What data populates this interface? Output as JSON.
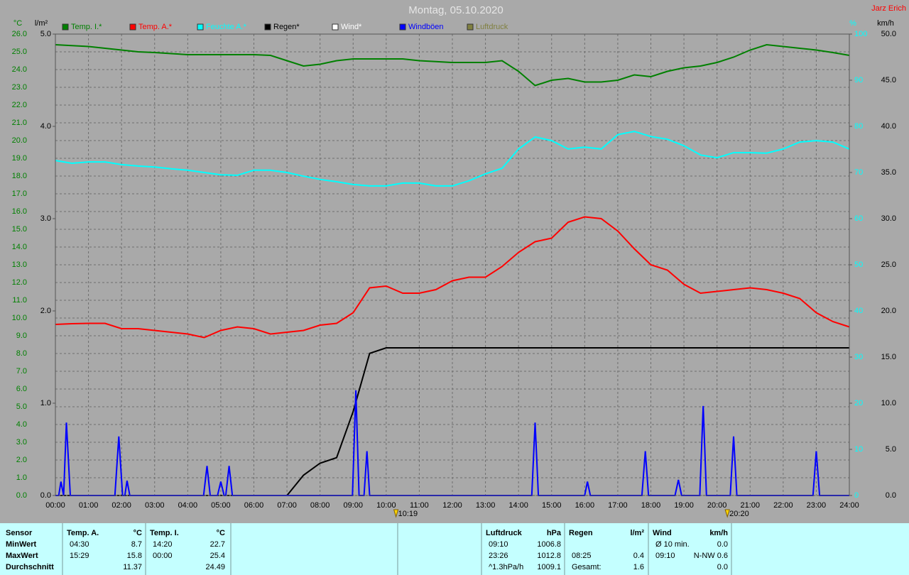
{
  "chart_data": {
    "type": "line",
    "title": "Montag, 05.10.2020",
    "author": "Jarz Erich",
    "ylabel": "°C",
    "y2label": "l/m²",
    "y3label": "%",
    "y4label": "km/h",
    "y_color": "#008000",
    "y2_color": "#000000",
    "y3_color": "#00ffff",
    "y4_color": "#000000",
    "grid": true,
    "x": [
      0,
      0.5,
      1,
      1.5,
      2,
      2.5,
      3,
      3.5,
      4,
      4.5,
      5,
      5.5,
      6,
      6.5,
      7,
      7.5,
      8,
      8.5,
      9,
      9.5,
      10,
      10.5,
      11,
      11.5,
      12,
      12.5,
      13,
      13.5,
      14,
      14.5,
      15,
      15.5,
      16,
      16.5,
      17,
      17.5,
      18,
      18.5,
      19,
      19.5,
      20,
      20.5,
      21,
      21.5,
      22,
      22.5,
      23,
      23.5,
      24
    ],
    "xlim": [
      0,
      24
    ],
    "xticks": [
      {
        "value": 0,
        "label": "00:00"
      },
      {
        "value": 1,
        "label": "01:00"
      },
      {
        "value": 2,
        "label": "02:00"
      },
      {
        "value": 3,
        "label": "03:00"
      },
      {
        "value": 4,
        "label": "04:00"
      },
      {
        "value": 5,
        "label": "05:00"
      },
      {
        "value": 6,
        "label": "06:00"
      },
      {
        "value": 7,
        "label": "07:00"
      },
      {
        "value": 8,
        "label": "08:00"
      },
      {
        "value": 9,
        "label": "09:00"
      },
      {
        "value": 10,
        "label": "10:00"
      },
      {
        "value": 11,
        "label": "11:00"
      },
      {
        "value": 12,
        "label": "12:00"
      },
      {
        "value": 13,
        "label": "13:00"
      },
      {
        "value": 14,
        "label": "14:00"
      },
      {
        "value": 15,
        "label": "15:00"
      },
      {
        "value": 16,
        "label": "16:00"
      },
      {
        "value": 17,
        "label": "17:00"
      },
      {
        "value": 18,
        "label": "18:00"
      },
      {
        "value": 19,
        "label": "19:00"
      },
      {
        "value": 20,
        "label": "20:00"
      },
      {
        "value": 21,
        "label": "21:00"
      },
      {
        "value": 22,
        "label": "22:00"
      },
      {
        "value": 23,
        "label": "23:00"
      },
      {
        "value": 24,
        "label": "24:00"
      }
    ],
    "ylim": [
      0,
      26
    ],
    "yticks": [
      {
        "value": 0,
        "label": "0.0"
      },
      {
        "value": 1,
        "label": "1.0"
      },
      {
        "value": 2,
        "label": "2.0"
      },
      {
        "value": 3,
        "label": "3.0"
      },
      {
        "value": 4,
        "label": "4.0"
      },
      {
        "value": 5,
        "label": "5.0"
      },
      {
        "value": 6,
        "label": "6.0"
      },
      {
        "value": 7,
        "label": "7.0"
      },
      {
        "value": 8,
        "label": "8.0"
      },
      {
        "value": 9,
        "label": "9.0"
      },
      {
        "value": 10,
        "label": "10.0"
      },
      {
        "value": 11,
        "label": "11.0"
      },
      {
        "value": 12,
        "label": "12.0"
      },
      {
        "value": 13,
        "label": "13.0"
      },
      {
        "value": 14,
        "label": "14.0"
      },
      {
        "value": 15,
        "label": "15.0"
      },
      {
        "value": 16,
        "label": "16.0"
      },
      {
        "value": 17,
        "label": "17.0"
      },
      {
        "value": 18,
        "label": "18.0"
      },
      {
        "value": 19,
        "label": "19.0"
      },
      {
        "value": 20,
        "label": "20.0"
      },
      {
        "value": 21,
        "label": "21.0"
      },
      {
        "value": 22,
        "label": "22.0"
      },
      {
        "value": 23,
        "label": "23.0"
      },
      {
        "value": 24,
        "label": "24.0"
      },
      {
        "value": 25,
        "label": "25.0"
      },
      {
        "value": 26,
        "label": "26.0"
      }
    ],
    "y2lim": [
      0,
      5
    ],
    "y2ticks": [
      {
        "value": 0,
        "label": "0.0"
      },
      {
        "value": 1,
        "label": "1.0"
      },
      {
        "value": 2,
        "label": "2.0"
      },
      {
        "value": 3,
        "label": "3.0"
      },
      {
        "value": 4,
        "label": "4.0"
      },
      {
        "value": 5,
        "label": "5.0"
      }
    ],
    "y3lim": [
      0,
      100
    ],
    "y3ticks": [
      0,
      10,
      20,
      30,
      40,
      50,
      60,
      70,
      80,
      90,
      100
    ],
    "y4lim": [
      0,
      50
    ],
    "y4ticks": [
      {
        "value": 0,
        "label": "0.0"
      },
      {
        "value": 5,
        "label": "5.0"
      },
      {
        "value": 10,
        "label": "10.0"
      },
      {
        "value": 15,
        "label": "15.0"
      },
      {
        "value": 20,
        "label": "20.0"
      },
      {
        "value": 25,
        "label": "25.0"
      },
      {
        "value": 30,
        "label": "30.0"
      },
      {
        "value": 35,
        "label": "35.0"
      },
      {
        "value": 40,
        "label": "40.0"
      },
      {
        "value": 45,
        "label": "45.0"
      },
      {
        "value": 50,
        "label": "50.0"
      }
    ],
    "series": [
      {
        "name": "Temp. I.*",
        "color": "#008000",
        "axis": "y",
        "values": [
          25.4,
          25.35,
          25.3,
          25.2,
          25.1,
          25.0,
          24.96,
          24.9,
          24.84,
          24.84,
          24.84,
          24.84,
          24.84,
          24.8,
          24.5,
          24.2,
          24.3,
          24.5,
          24.6,
          24.6,
          24.6,
          24.6,
          24.5,
          24.45,
          24.4,
          24.4,
          24.4,
          24.5,
          23.9,
          23.1,
          23.4,
          23.5,
          23.3,
          23.3,
          23.4,
          23.7,
          23.6,
          23.9,
          24.1,
          24.2,
          24.4,
          24.7,
          25.1,
          25.4,
          25.3,
          25.2,
          25.1,
          24.96,
          24.8
        ]
      },
      {
        "name": "Temp. A.*",
        "color": "#ff0000",
        "axis": "y",
        "values": [
          9.64,
          9.68,
          9.7,
          9.7,
          9.4,
          9.4,
          9.3,
          9.2,
          9.1,
          8.9,
          9.3,
          9.5,
          9.4,
          9.1,
          9.2,
          9.3,
          9.6,
          9.7,
          10.3,
          11.7,
          11.8,
          11.4,
          11.4,
          11.6,
          12.1,
          12.3,
          12.3,
          12.9,
          13.7,
          14.3,
          14.5,
          15.4,
          15.7,
          15.6,
          14.9,
          13.9,
          13.0,
          12.7,
          11.9,
          11.4,
          11.5,
          11.6,
          11.7,
          11.6,
          11.4,
          11.1,
          10.3,
          9.8,
          9.5
        ]
      },
      {
        "name": "Feuchte A.*",
        "color": "#00ffff",
        "axis": "y3",
        "values": [
          72.6,
          72,
          72.3,
          72.3,
          71.7,
          71.4,
          71.2,
          70.8,
          70.5,
          70,
          69.5,
          69.4,
          70.5,
          70.5,
          70,
          69.2,
          68.5,
          68,
          67.4,
          67.1,
          67.1,
          67.7,
          67.7,
          67.1,
          67.1,
          68.2,
          69.7,
          70.9,
          75.1,
          77.7,
          76.9,
          75.1,
          75.5,
          75.1,
          78.2,
          78.9,
          77.8,
          77.2,
          75.8,
          73.8,
          73.2,
          74.3,
          74.3,
          74.2,
          75.1,
          76.6,
          76.9,
          76.6,
          75.1
        ]
      },
      {
        "name": "Regen*",
        "color": "#000000",
        "axis": "y2",
        "values": [
          0,
          0,
          0,
          0,
          0,
          0,
          0,
          0,
          0,
          0,
          0,
          0,
          0,
          0,
          0,
          0.22,
          0.35,
          0.41,
          0.91,
          1.54,
          1.6,
          1.6,
          1.6,
          1.6,
          1.6,
          1.6,
          1.6,
          1.6,
          1.6,
          1.6,
          1.6,
          1.6,
          1.6,
          1.6,
          1.6,
          1.6,
          1.6,
          1.6,
          1.6,
          1.6,
          1.6,
          1.6,
          1.6,
          1.6,
          1.6,
          1.6,
          1.6,
          1.6,
          1.6
        ]
      },
      {
        "name": "Wind*",
        "color": "#ffffff",
        "axis": "y4",
        "values": [
          0,
          0,
          0,
          0,
          0,
          0,
          0,
          0,
          0,
          0,
          0,
          0,
          0,
          0,
          0,
          0,
          0,
          0,
          0,
          0,
          0,
          0,
          0,
          0,
          0,
          0,
          0,
          0,
          0,
          0,
          0,
          0,
          0,
          0,
          0,
          0,
          0,
          0,
          0,
          0,
          0,
          0,
          0,
          0,
          0,
          0,
          0,
          0,
          0
        ]
      },
      {
        "name": "Windböen",
        "color": "#0000ff",
        "axis": "y4",
        "x": [
          0,
          0.1,
          0.167,
          0.25,
          0.333,
          0.45,
          1.8,
          1.917,
          2.03,
          2.1,
          2.167,
          2.25,
          4.48,
          4.583,
          4.68,
          4.9,
          5.0,
          5.1,
          5.15,
          5.25,
          5.35,
          8.98,
          9.083,
          9.18,
          9.33,
          9.417,
          9.5,
          14.4,
          14.5,
          14.6,
          16.0,
          16.083,
          16.17,
          17.73,
          17.833,
          17.93,
          18.73,
          18.833,
          18.93,
          19.48,
          19.583,
          19.68,
          20.4,
          20.5,
          20.6,
          22.9,
          23.0,
          23.1,
          24
        ],
        "values": [
          0,
          0,
          1.5,
          0,
          7.9,
          0,
          0,
          6.4,
          0,
          0,
          1.6,
          0,
          0,
          3.2,
          0,
          0,
          1.5,
          0,
          0,
          3.2,
          0,
          0,
          11.4,
          0,
          0,
          4.8,
          0,
          0,
          7.9,
          0,
          0,
          1.5,
          0,
          0,
          4.8,
          0,
          0,
          1.7,
          0,
          0,
          9.7,
          0,
          0,
          6.4,
          0,
          0,
          4.8,
          0,
          0
        ]
      },
      {
        "name": "Luftdruck",
        "color": "#808040"
      }
    ],
    "annotations": [
      {
        "text": "10:19",
        "x": 10.317
      },
      {
        "text": "20:20",
        "x": 20.333
      }
    ]
  },
  "stats_table": {
    "row_labels": [
      "Sensor",
      "MinWert",
      "MaxWert",
      "Durchschnitt"
    ],
    "groups": [
      {
        "title": "Temp. A.",
        "unit": "°C",
        "rows": [
          [
            "04:30",
            "8.7"
          ],
          [
            "15:29",
            "15.8"
          ],
          [
            "11.37"
          ]
        ]
      },
      {
        "title": "Temp. I.",
        "unit": "°C",
        "rows": [
          [
            "14:20",
            "22.7"
          ],
          [
            "00:00",
            "25.4"
          ],
          [
            "24.49"
          ]
        ]
      },
      {
        "title": "Luftdruck",
        "unit": "hPa",
        "rows": [
          [
            "09:10",
            "1006.8"
          ],
          [
            "23:26",
            "1012.8"
          ],
          [
            "^1.3hPa/h",
            "1009.1"
          ]
        ]
      },
      {
        "title": "Regen",
        "unit": "l/m²",
        "rows": [
          null,
          [
            "08:25",
            "0.4"
          ],
          [
            "Gesamt:",
            "1.6"
          ]
        ]
      },
      {
        "title": "Wind",
        "unit": "km/h",
        "rows": [
          [
            "Ø 10 min.",
            "0.0"
          ],
          [
            "09:10",
            "N-NW 0.6"
          ],
          [
            "0.0"
          ]
        ]
      }
    ]
  }
}
